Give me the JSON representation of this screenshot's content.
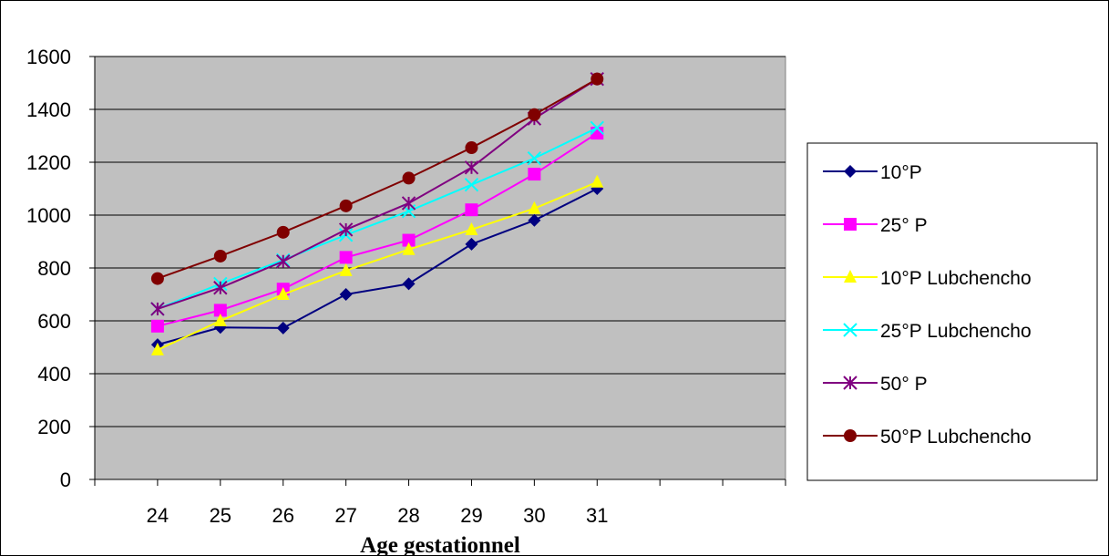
{
  "chart_data": {
    "type": "line",
    "title": "",
    "xlabel": "Age gestationnel",
    "ylabel": "",
    "x": [
      24,
      25,
      26,
      27,
      28,
      29,
      30,
      31
    ],
    "x_slots": 11,
    "ylim": [
      0,
      1600
    ],
    "yticks": [
      0,
      200,
      400,
      600,
      800,
      1000,
      1200,
      1400,
      1600
    ],
    "grid": true,
    "legend_position": "right",
    "plot_background": "#C0C0C0",
    "series": [
      {
        "name": "10°P",
        "color": "#000080",
        "marker": "diamond",
        "values": [
          510,
          575,
          573,
          700,
          740,
          890,
          980,
          1100
        ]
      },
      {
        "name": "25° P",
        "color": "#FF00FF",
        "marker": "square",
        "values": [
          580,
          640,
          720,
          840,
          905,
          1020,
          1155,
          1310
        ]
      },
      {
        "name": "10°P Lubchencho",
        "color": "#FFFF00",
        "marker": "triangle",
        "values": [
          490,
          600,
          700,
          790,
          870,
          945,
          1025,
          1125
        ]
      },
      {
        "name": "25°P Lubchencho",
        "color": "#00FFFF",
        "marker": "x",
        "values": [
          645,
          740,
          830,
          925,
          1015,
          1115,
          1215,
          1330
        ]
      },
      {
        "name": "50° P",
        "color": "#800080",
        "marker": "star",
        "values": [
          645,
          725,
          825,
          945,
          1045,
          1180,
          1365,
          1515
        ]
      },
      {
        "name": "50°P Lubchencho",
        "color": "#800000",
        "marker": "circle",
        "values": [
          760,
          845,
          935,
          1035,
          1140,
          1255,
          1380,
          1515
        ]
      }
    ]
  }
}
